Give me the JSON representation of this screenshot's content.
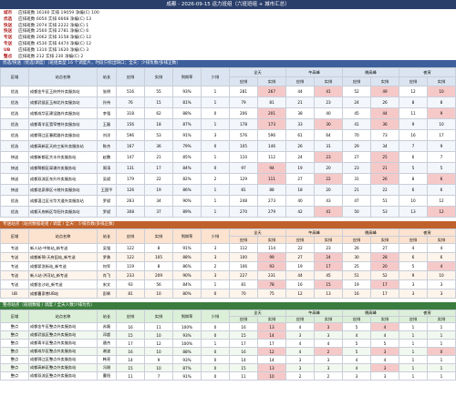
{
  "header": {
    "title": "成都 - 2026-09-15 运力班组（六班班组 + 城市汇总）",
    "summary": [
      {
        "label": "城市",
        "text": "应排班数 16160  实排 19059  净编(C) 100"
      },
      {
        "label": "优选",
        "text": "应排班数 6050  实排 6668  净编(C) 13"
      },
      {
        "label": "快送",
        "text": "应排班数 2074  实排 2222  净编(C) 1"
      },
      {
        "label": "快送",
        "text": "应排班数 2560  实排 2781  净编(C) 6"
      },
      {
        "label": "专送",
        "text": "应排班数 2062  实排 3158  净编(C) 12"
      },
      {
        "label": "专送",
        "text": "应排班数 4530  实排 4474  净编(C) 12"
      },
      {
        "label": "UB",
        "text": "应排班数 1310  实排 1620  净编(C) 3"
      },
      {
        "label": "整点",
        "text": "应排班数 212  实排 230  净编(C) 2"
      }
    ]
  },
  "sections": [
    {
      "title": "优选/快送（优选/调度）（班组类型 16 个调度片，时段只标出缺口；全天：少排负数/多排正数）",
      "theme": "blue",
      "columns": [
        "区域",
        "站点名称",
        "站长",
        "应排",
        "实排",
        "到岗率",
        "少排"
      ],
      "groups": [
        "全天",
        "午高峰",
        "晚高峰",
        "夜宵"
      ],
      "sub": [
        "应排",
        "实排"
      ],
      "rows": [
        [
          "优选",
          "成都金牛区王府井外卖服务站",
          "张明",
          516,
          55,
          "93%",
          1,
          281,
          267,
          44,
          41,
          52,
          49,
          12,
          10
        ],
        [
          "优选",
          "成都武侯区玉林北外卖服务站",
          "孙伟",
          76,
          15,
          "81%",
          1,
          79,
          81,
          21,
          23,
          24,
          26,
          8,
          8
        ],
        [
          "优选",
          "成都成华区建设路外卖服务站",
          "李强",
          318,
          62,
          "88%",
          0,
          206,
          201,
          38,
          40,
          45,
          44,
          11,
          9
        ],
        [
          "优选",
          "成都青羊区宽窄巷外卖服务站",
          "王磊",
          156,
          18,
          "87%",
          1,
          178,
          173,
          33,
          30,
          41,
          36,
          9,
          10
        ],
        [
          "优选",
          "成都锦江区春熙路外卖服务站",
          "刘洋",
          596,
          53,
          "91%",
          3,
          576,
          596,
          61,
          64,
          70,
          73,
          16,
          17
        ],
        [
          "优选",
          "成都高新区天府三街外卖服务站",
          "陈杰",
          167,
          36,
          "79%",
          0,
          105,
          146,
          26,
          31,
          29,
          34,
          7,
          9
        ],
        [
          "快送",
          "成都新都区大丰外卖服务站",
          "赵鹏",
          147,
          21,
          "85%",
          1,
          110,
          112,
          24,
          23,
          27,
          25,
          6,
          7
        ],
        [
          "快送",
          "成都郫都区犀浦外卖服务站",
          "周涛",
          131,
          17,
          "84%",
          0,
          97,
          94,
          19,
          20,
          23,
          21,
          5,
          5
        ],
        [
          "快送",
          "成都双流区东升外卖服务站",
          "吴斌",
          179,
          22,
          "82%",
          2,
          129,
          111,
          27,
          22,
          31,
          26,
          8,
          6
        ],
        [
          "快送",
          "成都龙泉驿区十陵外卖服务站",
          "王国平",
          126,
          19,
          "86%",
          1,
          81,
          88,
          18,
          20,
          21,
          22,
          6,
          6
        ],
        [
          "优选",
          "成都温江区光华大道外卖服务站",
          "罗斌",
          263,
          34,
          "90%",
          1,
          248,
          273,
          40,
          43,
          47,
          51,
          10,
          12
        ],
        [
          "优选",
          "成都天府新区华阳外卖服务站",
          "罗斌",
          308,
          37,
          "89%",
          1,
          270,
          279,
          42,
          41,
          50,
          53,
          13,
          12
        ]
      ]
    },
    {
      "title": "专送站点（站点数据班组 / 调度 / 全天：少排负数/多排正数）",
      "theme": "orange",
      "columns": [
        "区域",
        "站点名称",
        "站长",
        "应排",
        "实排",
        "到岗率",
        "少排"
      ],
      "groups": [
        "全天",
        "午高峰",
        "晚高峰",
        "夜宵"
      ],
      "sub": [
        "应排",
        "实排"
      ],
      "rows": [
        [
          "专送",
          "新人站-中和站_新专送",
          "吴强",
          122,
          8,
          "91%",
          3,
          112,
          114,
          22,
          23,
          26,
          27,
          4,
          4
        ],
        [
          "专送",
          "成都新锦-天府田站_新专送",
          "罗勇",
          122,
          105,
          "88%",
          3,
          100,
          99,
          27,
          24,
          30,
          28,
          6,
          6
        ],
        [
          "专送",
          "成都浆洗街站_新专送",
          "何军",
          119,
          8,
          "86%",
          2,
          106,
          93,
          19,
          17,
          25,
          20,
          5,
          4
        ],
        [
          "专送",
          "新人站-洪河站_新专送",
          "肖飞",
          233,
          209,
          "90%",
          3,
          227,
          231,
          44,
          45,
          51,
          52,
          9,
          10
        ],
        [
          "专送",
          "成都金沙站_新专送",
          "宋文",
          93,
          56,
          "84%",
          1,
          81,
          78,
          16,
          15,
          19,
          17,
          3,
          3
        ],
        [
          "UB",
          "成都曹家巷UB站",
          "彭辉",
          81,
          10,
          "80%",
          0,
          70,
          75,
          12,
          13,
          16,
          17,
          3,
          3
        ]
      ]
    },
    {
      "title": "整点站点（班组数据 / 调度 / 全天人数少排为负）",
      "theme": "green",
      "columns": [
        "区域",
        "站点名称",
        "站长",
        "应排",
        "实排",
        "到岗率",
        "少排"
      ],
      "groups": [
        "全天",
        "午高峰",
        "晚高峰",
        "夜宵"
      ],
      "sub": [
        "应排",
        "实排"
      ],
      "rows": [
        [
          "整点",
          "成都金牛区整点外卖服务站",
          "苏磊",
          16,
          11,
          "100%",
          0,
          16,
          13,
          4,
          3,
          5,
          4,
          1,
          1
        ],
        [
          "整点",
          "成都武侯区整点外卖服务站",
          "邓超",
          15,
          10,
          "93%",
          0,
          15,
          14,
          3,
          3,
          4,
          4,
          1,
          1
        ],
        [
          "整点",
          "成都青羊区整点外卖服务站",
          "唐杰",
          17,
          12,
          "100%",
          1,
          17,
          17,
          4,
          4,
          5,
          5,
          1,
          1
        ],
        [
          "整点",
          "成都成华区整点外卖服务站",
          "谢波",
          16,
          10,
          "88%",
          0,
          16,
          12,
          4,
          2,
          5,
          3,
          1,
          0
        ],
        [
          "整点",
          "成都锦江区整点外卖服务站",
          "韩亮",
          14,
          9,
          "93%",
          0,
          14,
          14,
          3,
          3,
          4,
          4,
          1,
          1
        ],
        [
          "整点",
          "成都高新区整点外卖服务站",
          "冯刚",
          15,
          10,
          "87%",
          0,
          15,
          13,
          3,
          3,
          4,
          3,
          1,
          1
        ],
        [
          "整点",
          "成都双流区整点外卖服务站",
          "曹阳",
          11,
          7,
          "91%",
          0,
          11,
          10,
          2,
          2,
          3,
          3,
          1,
          1
        ]
      ]
    }
  ]
}
